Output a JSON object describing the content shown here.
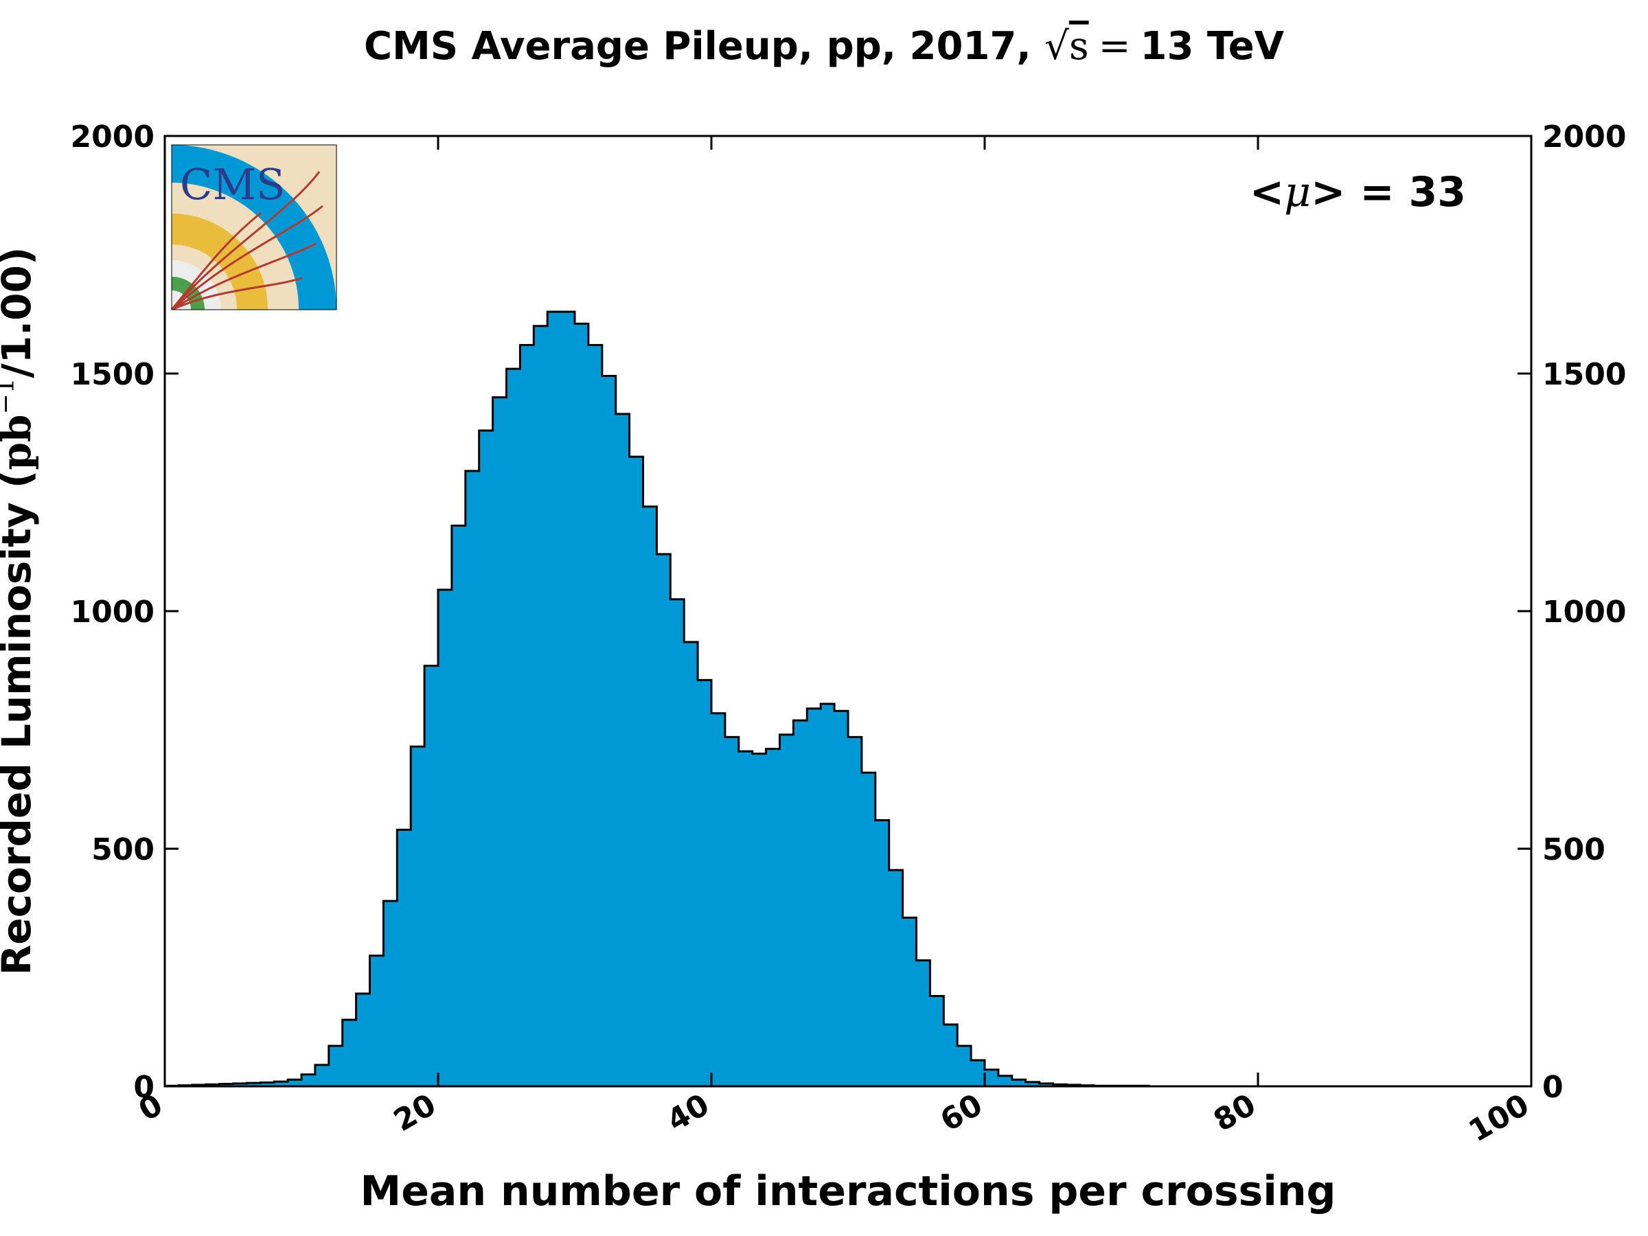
{
  "chart_data": {
    "type": "bar",
    "title": {
      "prefix": "CMS Average Pileup, pp, 2017, ",
      "sqrt_symbol": "√",
      "sqrt_var": "s",
      "equals": "=",
      "suffix": "13 TeV"
    },
    "xlabel": "Mean number of interactions per crossing",
    "ylabel": {
      "prefix": "Recorded Luminosity (",
      "unit": "pb",
      "exponent": "−1",
      "suffix": "/1.00)"
    },
    "xlim": [
      0,
      100
    ],
    "ylim": [
      0,
      2000
    ],
    "x_ticks": [
      "0",
      "20",
      "40",
      "60",
      "80",
      "100"
    ],
    "y_ticks": [
      "0",
      "500",
      "1000",
      "1500",
      "2000"
    ],
    "y_ticks_right": [
      "0",
      "500",
      "1000",
      "1500",
      "2000"
    ],
    "annotation": {
      "prefix": "<",
      "symbol": "μ",
      "suffix": "> = 33"
    },
    "logo_text": "CMS",
    "bin_width": 1,
    "bin_start": 0,
    "values": [
      1,
      2,
      3,
      4,
      5,
      6,
      7,
      8,
      10,
      14,
      25,
      45,
      85,
      140,
      195,
      275,
      390,
      540,
      715,
      885,
      1045,
      1180,
      1295,
      1380,
      1450,
      1510,
      1560,
      1600,
      1630,
      1630,
      1605,
      1560,
      1495,
      1415,
      1325,
      1220,
      1120,
      1025,
      935,
      855,
      785,
      735,
      705,
      700,
      710,
      740,
      770,
      795,
      805,
      790,
      735,
      660,
      560,
      455,
      355,
      265,
      190,
      130,
      85,
      55,
      35,
      22,
      14,
      9,
      6,
      4,
      3,
      2,
      1,
      1,
      1,
      1
    ],
    "fill_color": "#0099d6",
    "edge_color": "#000000",
    "grid": false
  }
}
